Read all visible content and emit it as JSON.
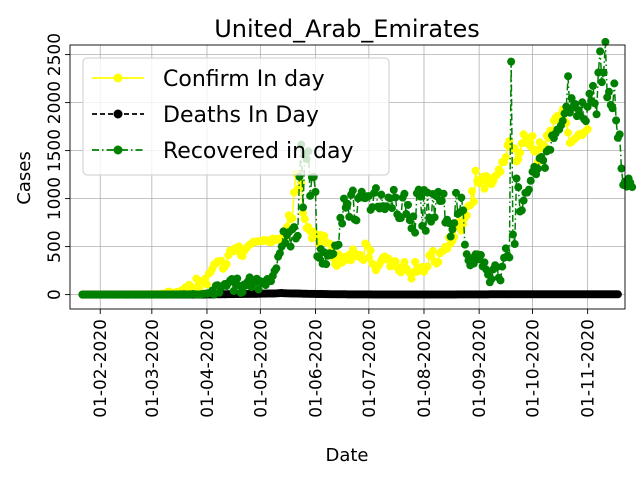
{
  "chart_data": {
    "type": "line",
    "title": "United_Arab_Emirates",
    "xlabel": "Date",
    "ylabel": "Cases",
    "x_start": "2020-01-22",
    "x_end": "2020-11-14",
    "xlim": [
      "2020-01-15",
      "2020-11-22"
    ],
    "ylim": [
      -150,
      2600
    ],
    "x_ticks": [
      {
        "date": "2020-02-01",
        "label": "01-02-2020"
      },
      {
        "date": "2020-03-01",
        "label": "01-03-2020"
      },
      {
        "date": "2020-04-01",
        "label": "01-04-2020"
      },
      {
        "date": "2020-05-01",
        "label": "01-05-2020"
      },
      {
        "date": "2020-06-01",
        "label": "01-06-2020"
      },
      {
        "date": "2020-07-01",
        "label": "01-07-2020"
      },
      {
        "date": "2020-08-01",
        "label": "01-08-2020"
      },
      {
        "date": "2020-09-01",
        "label": "01-09-2020"
      },
      {
        "date": "2020-10-01",
        "label": "01-10-2020"
      },
      {
        "date": "2020-11-01",
        "label": "01-11-2020"
      }
    ],
    "y_ticks": [
      0,
      500,
      1000,
      1500,
      2000,
      2500
    ],
    "y_tick_labels": [
      "0",
      "500",
      "1000",
      "1500",
      "2000",
      "2500"
    ],
    "grid": true,
    "legend_position": "top-left",
    "series": [
      {
        "name": "Confirm In day",
        "color": "#ffff00",
        "style": "solid",
        "values": [
          0,
          0,
          0,
          0,
          0,
          0,
          0,
          1,
          0,
          0,
          0,
          0,
          0,
          1,
          0,
          0,
          1,
          0,
          0,
          0,
          0,
          0,
          0,
          0,
          0,
          0,
          0,
          0,
          0,
          0,
          2,
          0,
          4,
          0,
          0,
          0,
          0,
          4,
          0,
          2,
          4,
          2,
          5,
          1,
          7,
          0,
          11,
          13,
          28,
          31,
          0,
          17,
          6,
          29,
          24,
          26,
          49,
          52,
          76,
          15,
          103,
          84,
          28,
          0,
          167,
          70,
          141,
          0,
          135,
          166,
          106,
          217,
          232,
          269,
          316,
          322,
          346,
          348,
          353,
          269,
          288,
          317,
          409,
          460,
          460,
          451,
          486,
          470,
          502,
          408,
          402,
          456,
          480,
          504,
          520,
          530,
          550,
          546,
          554,
          557,
          557,
          555,
          567,
          563,
          566,
          547,
          545,
          583,
          566,
          580,
          569,
          586,
          590,
          574,
          593,
          706,
          826,
          783,
          796,
          1064,
          1260,
          1250,
          1111,
          1164,
          850,
          786,
          693,
          703,
          658,
          586,
          655,
          614,
          624,
          527,
          621,
          598,
          610,
          543,
          534,
          530,
          459,
          382,
          317,
          299,
          420,
          392,
          333,
          364,
          395,
          364,
          417,
          358,
          471,
          432,
          400,
          414,
          414,
          375,
          360,
          532,
          511,
          388,
          459,
          322,
          305,
          253,
          290,
          317,
          352,
          388,
          397,
          366,
          375,
          294,
          299,
          346,
          347,
          287,
          249,
          231,
          292,
          339,
          274,
          246,
          225,
          167,
          232,
          341,
          238,
          266,
          280,
          289,
          237,
          278,
          293,
          409,
          400,
          456,
          344,
          323,
          340,
          430,
          451,
          458,
          499,
          478,
          594,
          531,
          561,
          601,
          709,
          752,
          757,
          667,
          734,
          801,
          824,
          923,
          930,
          1078,
          967,
          1290,
          1186,
          1161,
          1203,
          1228,
          1102,
          1235,
          1159,
          1209,
          1150,
          1185,
          1234,
          1246,
          1304,
          1281,
          1382,
          1379,
          1432,
          1556,
          1600,
          1535,
          1522,
          1524,
          1387,
          1408,
          1478,
          1576,
          1670,
          1579,
          1633,
          1573,
          1542,
          1651,
          1491,
          1507,
          1376,
          1587,
          1521,
          1557,
          1541,
          1657,
          1631,
          1708,
          1649,
          1813,
          1844,
          1859,
          1865,
          1785,
          1927,
          1810,
          1786,
          1687,
          1580,
          1590,
          1610,
          1625,
          1642,
          1670,
          1674,
          1661,
          1691,
          1702,
          1724
        ]
      },
      {
        "name": "Deaths In Day",
        "color": "#000000",
        "style": "dashed",
        "values": [
          0,
          0,
          0,
          0,
          0,
          0,
          0,
          0,
          0,
          0,
          0,
          0,
          0,
          0,
          0,
          0,
          0,
          0,
          0,
          0,
          0,
          0,
          0,
          0,
          0,
          0,
          0,
          0,
          0,
          0,
          0,
          0,
          0,
          0,
          0,
          0,
          0,
          0,
          0,
          0,
          0,
          0,
          0,
          0,
          0,
          0,
          0,
          0,
          0,
          0,
          0,
          0,
          0,
          0,
          0,
          0,
          0,
          0,
          0,
          0,
          0,
          0,
          0,
          0,
          1,
          0,
          1,
          0,
          1,
          1,
          2,
          2,
          2,
          1,
          2,
          3,
          3,
          3,
          3,
          4,
          3,
          4,
          5,
          5,
          5,
          5,
          6,
          6,
          6,
          6,
          7,
          7,
          7,
          7,
          7,
          8,
          8,
          8,
          8,
          9,
          9,
          10,
          10,
          10,
          11,
          11,
          11,
          11,
          12,
          13,
          14,
          15,
          16,
          14,
          14,
          13,
          13,
          12,
          12,
          11,
          11,
          11,
          10,
          10,
          9,
          9,
          9,
          8,
          8,
          8,
          7,
          7,
          6,
          6,
          6,
          6,
          5,
          5,
          5,
          4,
          4,
          4,
          4,
          3,
          3,
          3,
          3,
          3,
          3,
          2,
          2,
          2,
          2,
          2,
          2,
          2,
          2,
          2,
          2,
          2,
          2,
          2,
          2,
          1,
          1,
          1,
          1,
          1,
          1,
          1,
          1,
          1,
          1,
          1,
          1,
          1,
          1,
          1,
          1,
          1,
          1,
          1,
          1,
          1,
          1,
          1,
          1,
          1,
          1,
          1,
          1,
          1,
          1,
          1,
          1,
          1,
          1,
          1,
          1,
          1,
          1,
          1,
          1,
          1,
          1,
          1,
          1,
          1,
          1,
          1,
          1,
          2,
          2,
          2,
          2,
          2,
          2,
          2,
          2,
          2,
          2,
          2,
          2,
          2,
          2,
          2,
          2,
          2,
          2,
          3,
          3,
          3,
          3,
          3,
          3,
          3,
          3,
          3,
          3,
          3,
          3,
          3,
          3,
          3,
          3,
          3,
          3,
          3,
          3,
          3,
          3,
          3,
          3,
          3,
          3,
          3,
          3,
          3,
          3,
          3,
          3,
          3,
          3,
          3,
          3,
          3,
          3,
          3,
          3,
          3,
          3,
          3,
          3,
          3,
          3,
          3,
          3,
          3,
          3,
          3,
          3,
          3,
          3,
          3,
          3,
          3,
          3,
          3,
          3,
          3,
          3,
          3,
          3,
          3,
          3,
          3,
          3,
          3,
          3,
          3,
          3,
          3
        ]
      },
      {
        "name": "Recovered in day",
        "color": "#008000",
        "style": "dashdot",
        "values": [
          0,
          0,
          0,
          0,
          0,
          0,
          0,
          0,
          0,
          0,
          0,
          0,
          0,
          0,
          0,
          0,
          0,
          0,
          0,
          0,
          0,
          0,
          0,
          0,
          0,
          0,
          0,
          0,
          0,
          0,
          0,
          0,
          0,
          0,
          0,
          0,
          0,
          0,
          0,
          0,
          0,
          0,
          0,
          0,
          0,
          0,
          0,
          0,
          0,
          0,
          0,
          1,
          0,
          2,
          0,
          3,
          0,
          5,
          2,
          0,
          4,
          0,
          6,
          3,
          0,
          0,
          0,
          5,
          6,
          10,
          9,
          15,
          17,
          43,
          0,
          93,
          98,
          20,
          76,
          92,
          110,
          89,
          120,
          147,
          163,
          37,
          114,
          168,
          93,
          18,
          28,
          106,
          95,
          137,
          180,
          78,
          145,
          126,
          165,
          53,
          140,
          120,
          135,
          99,
          163,
          150,
          140,
          195,
          248,
          274,
          395,
          432,
          500,
          658,
          540,
          620,
          650,
          500,
          680,
          703,
          584,
          612,
          1227,
          1562,
          908,
          1451,
          1412,
          1493,
          1029,
          1223,
          1225,
          1070,
          398,
          383,
          474,
          322,
          440,
          317,
          406,
          431,
          413,
          425,
          512,
          508,
          520,
          800,
          740,
          1000,
          905,
          946,
          810,
          1040,
          1084,
          783,
          773,
          1003,
          1023,
          1071,
          1008,
          1005,
          1025,
          1026,
          883,
          911,
          1060,
          1109,
          916,
          897,
          1042,
          921,
          890,
          920,
          1012,
          1002,
          901,
          1091,
          1012,
          836,
          796,
          798,
          1010,
          1050,
          840,
          935,
          775,
          690,
          815,
          645,
          1055,
          1093,
          1020,
          715,
          1090,
          665,
          1062,
          802,
          760,
          1048,
          805,
          1025,
          1070,
          975,
          976,
          1050,
          750,
          780,
          745,
          605,
          680,
          745,
          1060,
          840,
          856,
          1010,
          877,
          520,
          421,
          356,
          305,
          380,
          323,
          420,
          419,
          368,
          412,
          294,
          336,
          261,
          208,
          128,
          162,
          264,
          306,
          287,
          176,
          148,
          292,
          384,
          482,
          406,
          387,
          2427,
          626,
          527,
          1210,
          1119,
          865,
          878,
          980,
          1060,
          1063,
          1094,
          1186,
          1280,
          1330,
          1253,
          1311,
          1419,
          1433,
          1399,
          1319,
          1491,
          1510,
          1508,
          1657,
          1630,
          1680,
          1720,
          1720,
          1762,
          1809,
          1886,
          1958,
          2275,
          1895,
          2046,
          1948,
          1985,
          1859,
          1922,
          1863,
          2003,
          1828,
          1807,
          1956,
          2093,
          2017,
          2174,
          1993,
          1878,
          2313,
          2534,
          2213,
          2312,
          2632,
          2055,
          2113,
          1975,
          1941,
          2200,
          1815,
          1633,
          1669,
          1313,
          1142,
          1177,
          1125,
          1210,
          1165,
          1120
        ]
      }
    ]
  }
}
